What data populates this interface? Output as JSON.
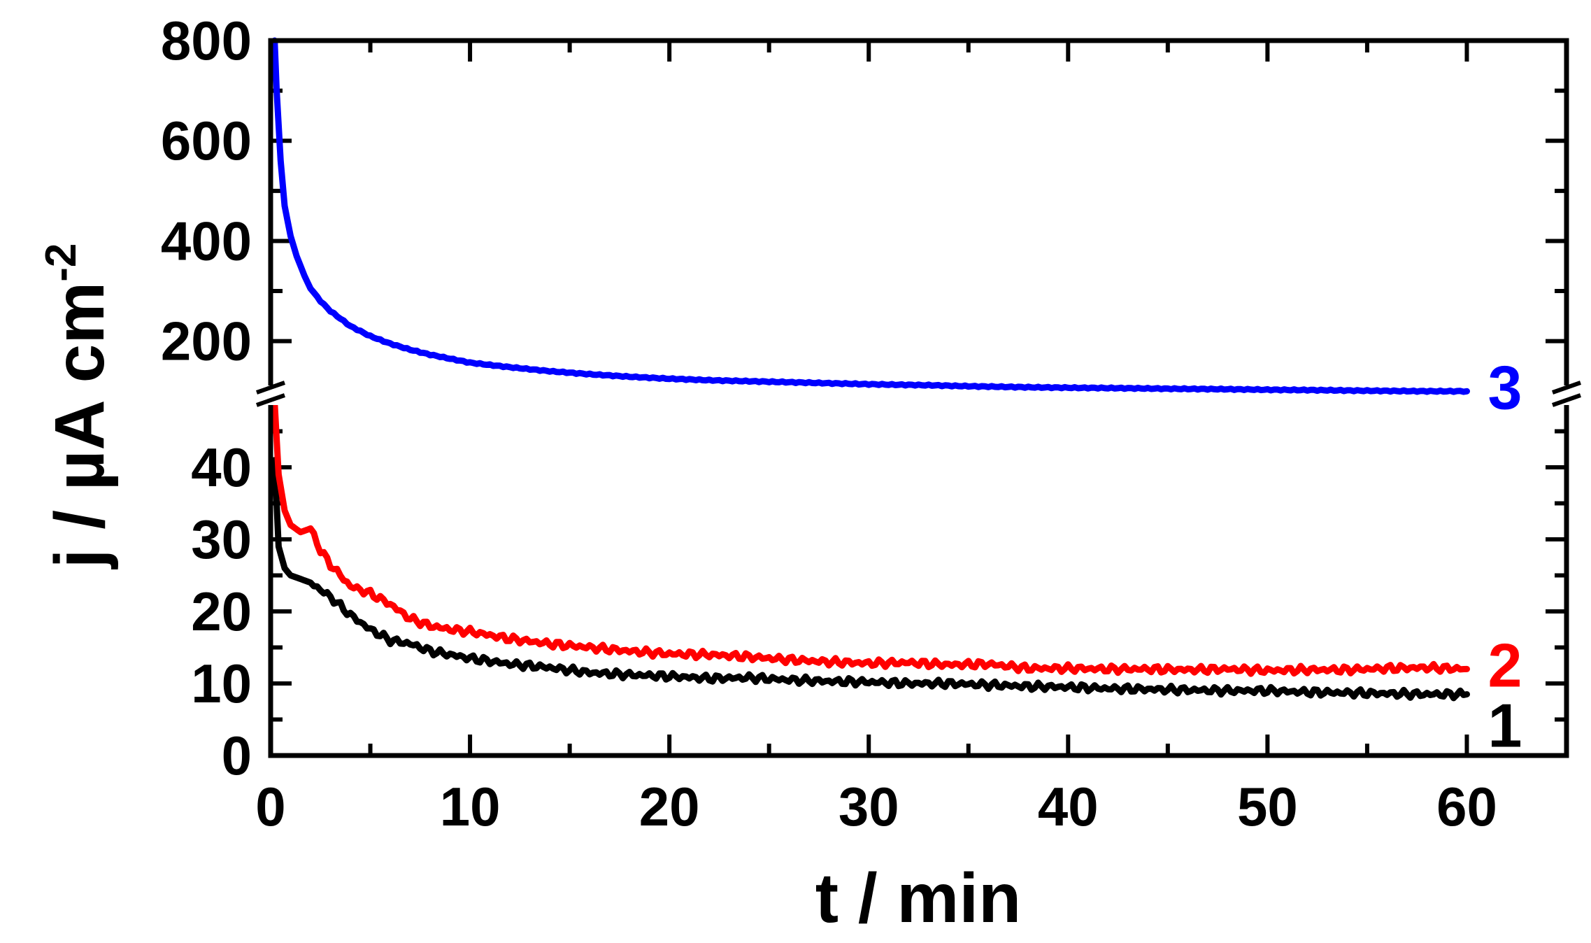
{
  "chart_data": {
    "type": "line",
    "xlabel": "t / min",
    "ylabel": "j / µA cm",
    "ylabel_sup": "-2",
    "xlim": [
      0,
      65
    ],
    "xticks": [
      0,
      10,
      20,
      30,
      40,
      50,
      60
    ],
    "y_axis_break": true,
    "y_upper": {
      "ylim": [
        92,
        800
      ],
      "ticks": [
        200,
        400,
        600,
        800
      ]
    },
    "y_lower": {
      "ylim": [
        0,
        50
      ],
      "ticks": [
        0,
        10,
        20,
        30,
        40
      ]
    },
    "grid": false,
    "series": [
      {
        "name": "1",
        "color": "#000000",
        "panel": "lower",
        "x": [
          0.2,
          0.4,
          0.7,
          1,
          1.5,
          2,
          3,
          4,
          5,
          6,
          7,
          8,
          9,
          10,
          12,
          14,
          16,
          18,
          20,
          22,
          24,
          26,
          28,
          30,
          32,
          34,
          36,
          38,
          40,
          42,
          44,
          46,
          48,
          50,
          52,
          54,
          56,
          58,
          60
        ],
        "y": [
          41,
          29,
          26,
          25,
          24.5,
          24,
          22,
          19.5,
          17.5,
          16,
          15.5,
          14.5,
          14,
          13.5,
          12.7,
          12.2,
          11.5,
          11.2,
          11.0,
          10.7,
          10.8,
          10.5,
          10.3,
          10.2,
          10.0,
          10.0,
          9.8,
          9.6,
          9.5,
          9.3,
          9.2,
          9.1,
          9.0,
          9.0,
          8.8,
          8.7,
          8.6,
          8.5,
          8.5
        ]
      },
      {
        "name": "2",
        "color": "#ff0000",
        "panel": "lower",
        "x": [
          0.2,
          0.4,
          0.7,
          1,
          1.5,
          2,
          2.5,
          3,
          4,
          5,
          6,
          7,
          8,
          9,
          10,
          12,
          14,
          16,
          18,
          20,
          22,
          24,
          26,
          28,
          30,
          32,
          34,
          36,
          38,
          40,
          42,
          44,
          46,
          48,
          50,
          52,
          54,
          56,
          58,
          60
        ],
        "y": [
          49,
          39,
          34,
          32,
          31,
          31.5,
          28.5,
          26.5,
          23.5,
          22.5,
          21,
          19,
          18,
          17.5,
          17.2,
          16.2,
          15.5,
          15.0,
          14.5,
          14.1,
          14.0,
          13.7,
          13.3,
          13.0,
          12.8,
          12.9,
          12.6,
          12.7,
          12.1,
          12.1,
          12.0,
          12.0,
          11.9,
          12.0,
          11.8,
          11.9,
          11.9,
          12.1,
          12.2,
          12.0
        ]
      },
      {
        "name": "3",
        "color": "#0000ff",
        "panel": "upper",
        "x": [
          0.2,
          0.3,
          0.5,
          0.7,
          1,
          1.3,
          1.7,
          2,
          2.5,
          3,
          4,
          5,
          6,
          7,
          8,
          9,
          10,
          12,
          14,
          16,
          18,
          20,
          22,
          25,
          28,
          30,
          33,
          35,
          38,
          40,
          43,
          45,
          48,
          50,
          53,
          55,
          58,
          60
        ],
        "y": [
          800,
          700,
          560,
          470,
          410,
          370,
          330,
          305,
          280,
          260,
          230,
          210,
          195,
          183,
          173,
          165,
          157,
          148,
          140,
          134,
          129,
          125,
          122,
          119,
          116,
          114,
          112,
          110,
          108,
          107,
          106,
          105,
          104,
          103,
          102,
          101,
          100,
          100
        ]
      }
    ]
  }
}
